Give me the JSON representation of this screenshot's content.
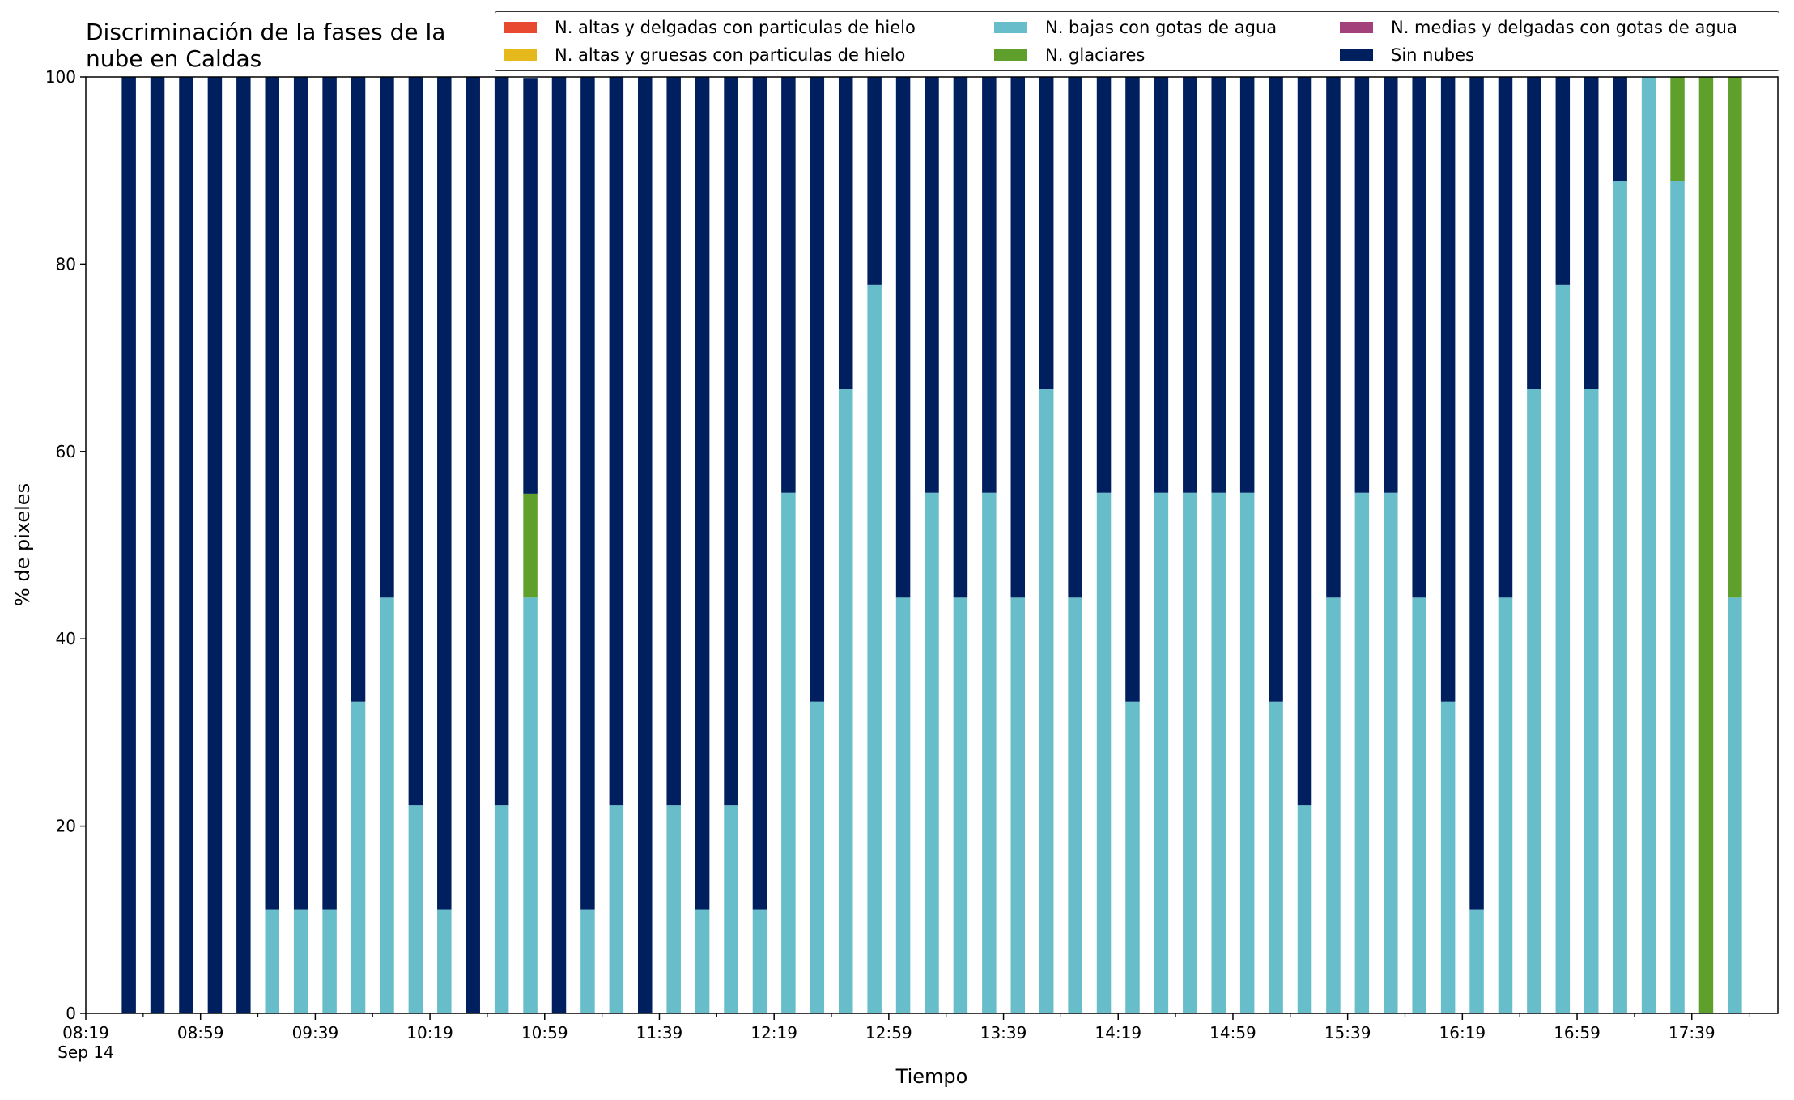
{
  "chart_data": {
    "type": "bar",
    "stacked": true,
    "title": "Discriminación de la fases de la\nnube en Caldas",
    "xlabel": "Tiempo",
    "ylabel": "% de pixeles",
    "ylim": [
      0,
      100
    ],
    "yticks": [
      "0",
      "20",
      "40",
      "60",
      "80",
      "100"
    ],
    "xlim": [
      "08:19",
      "18:09"
    ],
    "xtick_labels": [
      "08:19\nSep 14",
      "08:59",
      "09:39",
      "10:19",
      "10:59",
      "11:39",
      "12:19",
      "12:59",
      "13:39",
      "14:19",
      "14:59",
      "15:39",
      "16:19",
      "16:59",
      "17:39"
    ],
    "grid": false,
    "legend_position": "top-right",
    "categories": [
      "08:34",
      "08:44",
      "08:54",
      "09:04",
      "09:14",
      "09:24",
      "09:34",
      "09:44",
      "09:54",
      "10:04",
      "10:14",
      "10:24",
      "10:34",
      "10:44",
      "10:54",
      "11:04",
      "11:14",
      "11:24",
      "11:34",
      "11:44",
      "11:54",
      "12:04",
      "12:14",
      "12:24",
      "12:34",
      "12:44",
      "12:54",
      "13:04",
      "13:14",
      "13:24",
      "13:34",
      "13:44",
      "13:54",
      "14:04",
      "14:14",
      "14:24",
      "14:34",
      "14:44",
      "14:54",
      "15:04",
      "15:14",
      "15:24",
      "15:34",
      "15:44",
      "15:54",
      "16:04",
      "16:14",
      "16:24",
      "16:34",
      "16:44",
      "16:54",
      "17:04",
      "17:14",
      "17:24",
      "17:34",
      "17:44",
      "17:54"
    ],
    "series": [
      {
        "name": "N. altas y delgadas con particulas de hielo",
        "color": "#e84a2f",
        "values": [
          0,
          0,
          0,
          0,
          0,
          0,
          0,
          0,
          0,
          0,
          0,
          0,
          0,
          0,
          0,
          0,
          0,
          0,
          0,
          0,
          0,
          0,
          0,
          0,
          0,
          0,
          0,
          0,
          0,
          0,
          0,
          0,
          0,
          0,
          0,
          0,
          0,
          0,
          0,
          0,
          0,
          0,
          0,
          0,
          0,
          0,
          0,
          0,
          0,
          0,
          0,
          0,
          0,
          0,
          0,
          0,
          0
        ]
      },
      {
        "name": "N. altas y gruesas con particulas de hielo",
        "color": "#e5b81c",
        "values": [
          0,
          0,
          0,
          0,
          0,
          0,
          0,
          0,
          0,
          0,
          0,
          0,
          0,
          0,
          0,
          0,
          0,
          0,
          0,
          0,
          0,
          0,
          0,
          0,
          0,
          0,
          0,
          0,
          0,
          0,
          0,
          0,
          0,
          0,
          0,
          0,
          0,
          0,
          0,
          0,
          0,
          0,
          0,
          0,
          0,
          0,
          0,
          0,
          0,
          0,
          0,
          0,
          0,
          0,
          0,
          0,
          0
        ]
      },
      {
        "name": "N. bajas con gotas de agua",
        "color": "#67bdc9",
        "values": [
          0,
          0,
          0,
          0,
          0,
          11.1,
          11.1,
          11.1,
          33.3,
          44.4,
          22.2,
          11.1,
          0,
          22.2,
          44.4,
          0,
          11.1,
          22.2,
          0,
          22.2,
          11.1,
          22.2,
          11.1,
          55.6,
          33.3,
          66.7,
          77.8,
          44.4,
          55.6,
          44.4,
          55.6,
          44.4,
          66.7,
          44.4,
          55.6,
          33.3,
          55.6,
          55.6,
          55.6,
          55.6,
          33.3,
          22.2,
          44.4,
          55.6,
          55.6,
          44.4,
          33.3,
          11.1,
          44.4,
          66.7,
          77.8,
          66.7,
          88.9,
          100,
          88.9,
          0,
          44.4
        ]
      },
      {
        "name": "N. glaciares",
        "color": "#5fa02d",
        "values": [
          0,
          0,
          0,
          0,
          0,
          0,
          0,
          0,
          0,
          0,
          0,
          0,
          0,
          0,
          11.1,
          0,
          0,
          0,
          0,
          0,
          0,
          0,
          0,
          0,
          0,
          0,
          0,
          0,
          0,
          0,
          0,
          0,
          0,
          0,
          0,
          0,
          0,
          0,
          0,
          0,
          0,
          0,
          0,
          0,
          0,
          0,
          0,
          0,
          0,
          0,
          0,
          0,
          0,
          0,
          11.1,
          100,
          55.6
        ]
      },
      {
        "name": "N. medias y delgadas con gotas de agua",
        "color": "#a2417a",
        "values": [
          0,
          0,
          0,
          0,
          0,
          0,
          0,
          0,
          0,
          0,
          0,
          0,
          0,
          0,
          0,
          0,
          0,
          0,
          0,
          0,
          0,
          0,
          0,
          0,
          0,
          0,
          0,
          0,
          0,
          0,
          0,
          0,
          0,
          0,
          0,
          0,
          0,
          0,
          0,
          0,
          0,
          0,
          0,
          0,
          0,
          0,
          0,
          0,
          0,
          0,
          0,
          0,
          0,
          0,
          0,
          0,
          0
        ]
      },
      {
        "name": "Sin nubes",
        "color": "#001f5f",
        "values": [
          100,
          100,
          100,
          100,
          100,
          88.9,
          88.9,
          88.9,
          66.7,
          55.6,
          77.8,
          88.9,
          100,
          77.8,
          44.4,
          100,
          88.9,
          77.8,
          100,
          77.8,
          88.9,
          77.8,
          88.9,
          44.4,
          66.7,
          33.3,
          22.2,
          55.6,
          44.4,
          55.6,
          44.4,
          55.6,
          33.3,
          55.6,
          44.4,
          66.7,
          44.4,
          44.4,
          44.4,
          44.4,
          66.7,
          77.8,
          55.6,
          44.4,
          44.4,
          55.6,
          66.7,
          88.9,
          55.6,
          33.3,
          22.2,
          33.3,
          11.1,
          0,
          0,
          0,
          0
        ]
      }
    ],
    "legend_order": [
      "N. altas y delgadas con particulas de hielo",
      "N. altas y gruesas con particulas de hielo",
      "N. bajas con gotas de agua",
      "N. glaciares",
      "N. medias y delgadas con gotas de agua",
      "Sin nubes"
    ]
  }
}
